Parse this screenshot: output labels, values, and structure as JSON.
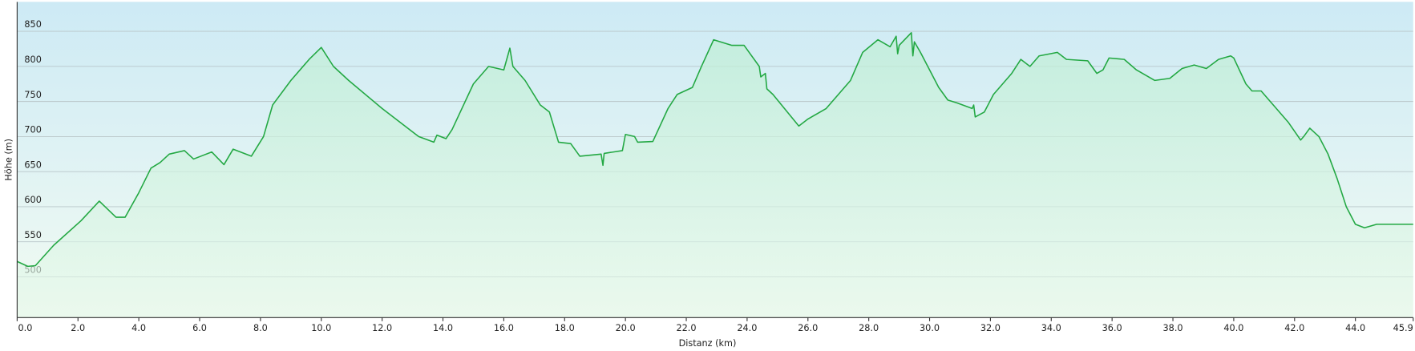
{
  "chart_data": {
    "type": "area",
    "x_label": "Distanz  (km)",
    "y_label": "Höhe (m)",
    "x": [
      0.0,
      0.35,
      0.6,
      1.2,
      2.1,
      2.7,
      3.25,
      3.55,
      4.0,
      4.4,
      4.7,
      5.0,
      5.5,
      5.8,
      6.4,
      6.8,
      7.1,
      7.7,
      8.1,
      8.4,
      9.0,
      9.6,
      10.0,
      10.4,
      10.9,
      12.0,
      13.2,
      13.7,
      13.8,
      14.1,
      14.3,
      15.0,
      15.5,
      16.0,
      16.2,
      16.3,
      16.7,
      17.2,
      17.5,
      17.8,
      18.2,
      18.5,
      19.2,
      19.26,
      19.3,
      19.9,
      20.0,
      20.3,
      20.4,
      20.9,
      21.4,
      21.7,
      22.2,
      22.5,
      22.9,
      23.5,
      23.9,
      24.4,
      24.45,
      24.6,
      24.65,
      24.85,
      25.7,
      26.0,
      26.6,
      27.4,
      27.8,
      28.3,
      28.7,
      28.9,
      28.95,
      29.0,
      29.4,
      29.45,
      29.5,
      29.7,
      30.3,
      30.6,
      30.9,
      31.4,
      31.45,
      31.5,
      31.8,
      32.1,
      32.7,
      33.0,
      33.3,
      33.6,
      34.2,
      34.5,
      35.2,
      35.5,
      35.7,
      35.9,
      36.4,
      36.8,
      37.4,
      37.9,
      38.3,
      38.7,
      39.1,
      39.5,
      39.9,
      40.0,
      40.4,
      40.6,
      40.9,
      41.3,
      41.8,
      42.2,
      42.3,
      42.5,
      42.8,
      43.1,
      43.4,
      43.7,
      44.0,
      44.3,
      44.7,
      45.9
    ],
    "values": [
      522,
      515,
      516,
      545,
      580,
      608,
      585,
      585,
      620,
      655,
      663,
      675,
      680,
      668,
      678,
      660,
      682,
      672,
      700,
      745,
      780,
      810,
      827,
      800,
      780,
      740,
      700,
      692,
      702,
      697,
      710,
      775,
      800,
      795,
      826,
      800,
      780,
      745,
      735,
      692,
      690,
      672,
      675,
      659,
      676,
      680,
      703,
      700,
      692,
      693,
      740,
      760,
      770,
      800,
      838,
      830,
      830,
      800,
      785,
      790,
      768,
      760,
      715,
      725,
      740,
      780,
      820,
      838,
      828,
      843,
      818,
      830,
      848,
      815,
      835,
      820,
      770,
      752,
      748,
      740,
      745,
      728,
      735,
      760,
      790,
      810,
      800,
      815,
      820,
      810,
      808,
      790,
      795,
      812,
      810,
      795,
      780,
      783,
      797,
      802,
      797,
      810,
      815,
      812,
      775,
      765,
      765,
      745,
      720,
      695,
      700,
      712,
      700,
      675,
      640,
      600,
      575,
      570,
      575,
      575
    ],
    "color": "#23a843",
    "xlim": [
      0,
      45.9
    ],
    "xticks": [
      {
        "value": 0,
        "label": "0.0"
      },
      {
        "value": 2,
        "label": "2.0"
      },
      {
        "value": 4,
        "label": "4.0"
      },
      {
        "value": 6,
        "label": "6.0"
      },
      {
        "value": 8,
        "label": "8.0"
      },
      {
        "value": 10,
        "label": "10.0"
      },
      {
        "value": 12,
        "label": "12.0"
      },
      {
        "value": 14,
        "label": "14.0"
      },
      {
        "value": 16,
        "label": "16.0"
      },
      {
        "value": 18,
        "label": "18.0"
      },
      {
        "value": 20,
        "label": "20.0"
      },
      {
        "value": 22,
        "label": "22.0"
      },
      {
        "value": 24,
        "label": "24.0"
      },
      {
        "value": 26,
        "label": "26.0"
      },
      {
        "value": 28,
        "label": "28.0"
      },
      {
        "value": 30,
        "label": "30.0"
      },
      {
        "value": 32,
        "label": "32.0"
      },
      {
        "value": 34,
        "label": "34.0"
      },
      {
        "value": 36,
        "label": "36.0"
      },
      {
        "value": 38,
        "label": "38.0"
      },
      {
        "value": 40,
        "label": "40.0"
      },
      {
        "value": 42,
        "label": "42.0"
      },
      {
        "value": 44,
        "label": "44.0"
      },
      {
        "value": 45.9,
        "label": "45.9"
      }
    ],
    "ylim": [
      442,
      892
    ],
    "yticks": [
      500,
      550,
      600,
      650,
      700,
      750,
      800,
      850
    ],
    "grid": true
  }
}
